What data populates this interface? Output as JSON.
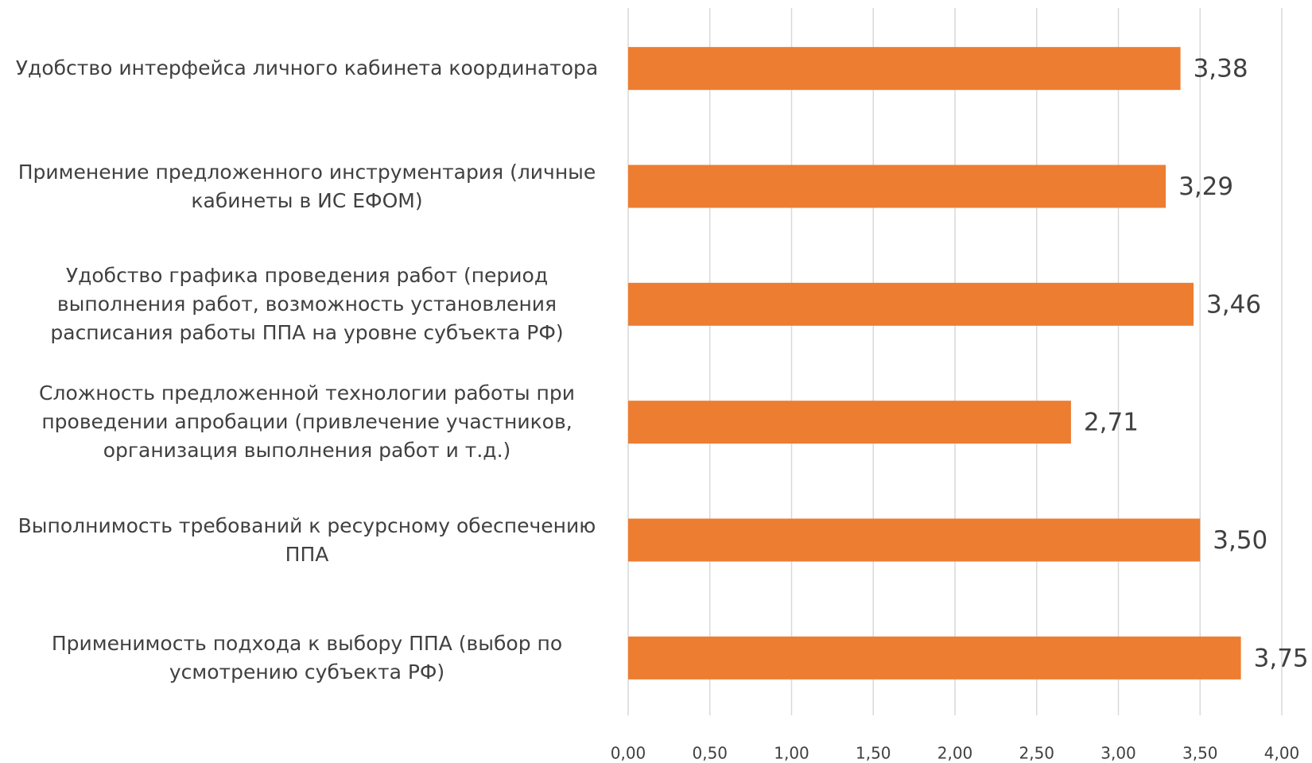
{
  "chart_data": {
    "type": "bar",
    "orientation": "horizontal",
    "categories": [
      "Удобство интерфейса личного кабинета координатора",
      "Применение предложенного инструментария (личные кабинеты в ИС ЕФОМ)",
      "Удобство графика проведения работ (период выполнения работ, возможность установления расписания работы ППА на уровне субъекта РФ)",
      "Сложность предложенной технологии работы при проведении апробации (привлечение участников, организация выполнения работ и т.д.)",
      "Выполнимость требований к ресурсному обеспечению ППА",
      "Применимость подхода к выбору ППА (выбор по усмотрению субъекта РФ)"
    ],
    "values": [
      3.38,
      3.29,
      3.46,
      2.71,
      3.5,
      3.75
    ],
    "value_labels": [
      "3,38",
      "3,29",
      "3,46",
      "2,71",
      "3,50",
      "3,75"
    ],
    "color": "#ed7d31",
    "xlim": [
      0,
      4
    ],
    "xticks": [
      {
        "value": 0,
        "label": "0,00"
      },
      {
        "value": 0.5,
        "label": "0,50"
      },
      {
        "value": 1,
        "label": "1,00"
      },
      {
        "value": 1.5,
        "label": "1,50"
      },
      {
        "value": 2,
        "label": "2,00"
      },
      {
        "value": 2.5,
        "label": "2,50"
      },
      {
        "value": 3,
        "label": "3,00"
      },
      {
        "value": 3.5,
        "label": "3,50"
      },
      {
        "value": 4,
        "label": "4,00"
      }
    ],
    "grid": true
  }
}
